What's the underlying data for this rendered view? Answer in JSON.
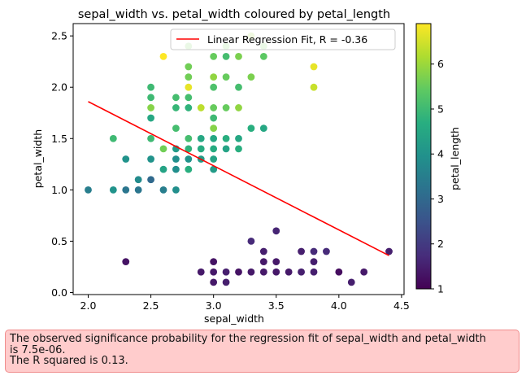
{
  "chart_data": {
    "type": "scatter",
    "title": "sepal_width vs. petal_width coloured by petal_length",
    "xlabel": "sepal_width",
    "ylabel": "petal_width",
    "xlim": [
      1.88,
      4.52
    ],
    "ylim": [
      -0.02,
      2.62
    ],
    "xticks": [
      2.0,
      2.5,
      3.0,
      3.5,
      4.0,
      4.5
    ],
    "xtick_labels": [
      "2.0",
      "2.5",
      "3.0",
      "3.5",
      "4.0",
      "4.5"
    ],
    "yticks": [
      0.0,
      0.5,
      1.0,
      1.5,
      2.0,
      2.5
    ],
    "ytick_labels": [
      "0.0",
      "0.5",
      "1.0",
      "1.5",
      "2.0",
      "2.5"
    ],
    "colorbar": {
      "label": "petal_length",
      "range": [
        1,
        6.9
      ],
      "ticks": [
        1,
        2,
        3,
        4,
        5,
        6
      ],
      "tick_labels": [
        "1",
        "2",
        "3",
        "4",
        "5",
        "6"
      ]
    },
    "legend": {
      "label": "Linear Regression Fit, R = -0.36",
      "position": "top-right",
      "color": "#ff0000"
    },
    "fit_line": {
      "x": [
        2.0,
        4.4
      ],
      "y": [
        1.86,
        0.36
      ],
      "color": "#ff0000"
    },
    "points": [
      [
        2.0,
        1.0,
        3.5
      ],
      [
        2.2,
        1.0,
        4.0
      ],
      [
        2.2,
        1.5,
        5.0
      ],
      [
        2.3,
        1.3,
        4.0
      ],
      [
        2.3,
        1.0,
        3.3
      ],
      [
        2.3,
        0.3,
        1.3
      ],
      [
        2.4,
        1.1,
        3.8
      ],
      [
        2.4,
        1.0,
        3.3
      ],
      [
        2.5,
        2.0,
        5.0
      ],
      [
        2.5,
        1.9,
        5.0
      ],
      [
        2.5,
        1.8,
        5.8
      ],
      [
        2.5,
        1.7,
        4.5
      ],
      [
        2.5,
        1.5,
        5.0
      ],
      [
        2.5,
        1.3,
        4.0
      ],
      [
        2.5,
        1.1,
        3.0
      ],
      [
        2.6,
        2.3,
        6.9
      ],
      [
        2.6,
        1.4,
        5.6
      ],
      [
        2.6,
        1.2,
        4.4
      ],
      [
        2.6,
        1.0,
        3.5
      ],
      [
        2.7,
        1.9,
        5.1
      ],
      [
        2.7,
        1.8,
        4.9
      ],
      [
        2.7,
        1.6,
        5.1
      ],
      [
        2.7,
        1.4,
        4.2
      ],
      [
        2.7,
        1.3,
        3.9
      ],
      [
        2.7,
        1.2,
        3.9
      ],
      [
        2.7,
        1.0,
        3.9
      ],
      [
        2.8,
        2.4,
        5.6
      ],
      [
        2.8,
        2.2,
        5.6
      ],
      [
        2.8,
        2.1,
        5.6
      ],
      [
        2.8,
        2.0,
        6.7
      ],
      [
        2.8,
        1.9,
        5.1
      ],
      [
        2.8,
        1.8,
        4.8
      ],
      [
        2.8,
        1.5,
        5.1
      ],
      [
        2.8,
        1.4,
        4.8
      ],
      [
        2.8,
        1.3,
        4.0
      ],
      [
        2.8,
        1.2,
        4.7
      ],
      [
        2.9,
        1.8,
        6.3
      ],
      [
        2.9,
        1.5,
        4.5
      ],
      [
        2.9,
        1.4,
        4.6
      ],
      [
        2.9,
        1.3,
        4.2
      ],
      [
        2.9,
        0.2,
        1.4
      ],
      [
        3.0,
        2.3,
        5.5
      ],
      [
        3.0,
        2.1,
        5.9
      ],
      [
        3.0,
        2.0,
        5.2
      ],
      [
        3.0,
        1.8,
        5.5
      ],
      [
        3.0,
        1.7,
        5.0
      ],
      [
        3.0,
        1.6,
        5.8
      ],
      [
        3.0,
        1.5,
        4.5
      ],
      [
        3.0,
        1.4,
        4.6
      ],
      [
        3.0,
        1.3,
        4.4
      ],
      [
        3.0,
        1.2,
        4.2
      ],
      [
        3.0,
        0.3,
        1.3
      ],
      [
        3.0,
        0.2,
        1.4
      ],
      [
        3.0,
        0.1,
        1.4
      ],
      [
        3.1,
        2.4,
        5.6
      ],
      [
        3.1,
        2.3,
        5.1
      ],
      [
        3.1,
        2.1,
        5.5
      ],
      [
        3.1,
        1.8,
        5.5
      ],
      [
        3.1,
        1.5,
        4.7
      ],
      [
        3.1,
        1.4,
        4.4
      ],
      [
        3.1,
        0.2,
        1.5
      ],
      [
        3.1,
        0.1,
        1.5
      ],
      [
        3.2,
        2.3,
        5.7
      ],
      [
        3.2,
        2.0,
        5.1
      ],
      [
        3.2,
        1.8,
        5.9
      ],
      [
        3.2,
        1.5,
        4.5
      ],
      [
        3.2,
        1.4,
        4.7
      ],
      [
        3.2,
        0.2,
        1.3
      ],
      [
        3.3,
        2.5,
        6.0
      ],
      [
        3.3,
        2.1,
        5.7
      ],
      [
        3.3,
        1.6,
        4.7
      ],
      [
        3.3,
        0.5,
        1.7
      ],
      [
        3.3,
        0.2,
        1.4
      ],
      [
        3.4,
        2.4,
        5.6
      ],
      [
        3.4,
        2.3,
        5.4
      ],
      [
        3.4,
        1.6,
        4.5
      ],
      [
        3.4,
        0.4,
        1.5
      ],
      [
        3.4,
        0.3,
        1.4
      ],
      [
        3.4,
        0.2,
        1.4
      ],
      [
        3.5,
        0.6,
        1.6
      ],
      [
        3.5,
        0.3,
        1.4
      ],
      [
        3.5,
        0.2,
        1.4
      ],
      [
        3.6,
        0.2,
        1.4
      ],
      [
        3.7,
        0.4,
        1.5
      ],
      [
        3.7,
        0.2,
        1.5
      ],
      [
        3.8,
        2.2,
        6.7
      ],
      [
        3.8,
        2.0,
        6.4
      ],
      [
        3.8,
        0.4,
        1.7
      ],
      [
        3.8,
        0.3,
        1.5
      ],
      [
        3.8,
        0.2,
        1.5
      ],
      [
        3.9,
        0.4,
        1.7
      ],
      [
        4.0,
        0.2,
        1.2
      ],
      [
        4.1,
        0.1,
        1.5
      ],
      [
        4.2,
        0.2,
        1.4
      ],
      [
        4.4,
        0.4,
        1.5
      ]
    ]
  },
  "note": {
    "line1": "The observed significance probability for the regression fit of sepal_width and petal_width",
    "line2": "is 7.5e-06.",
    "line3": "The R squared is 0.13."
  }
}
